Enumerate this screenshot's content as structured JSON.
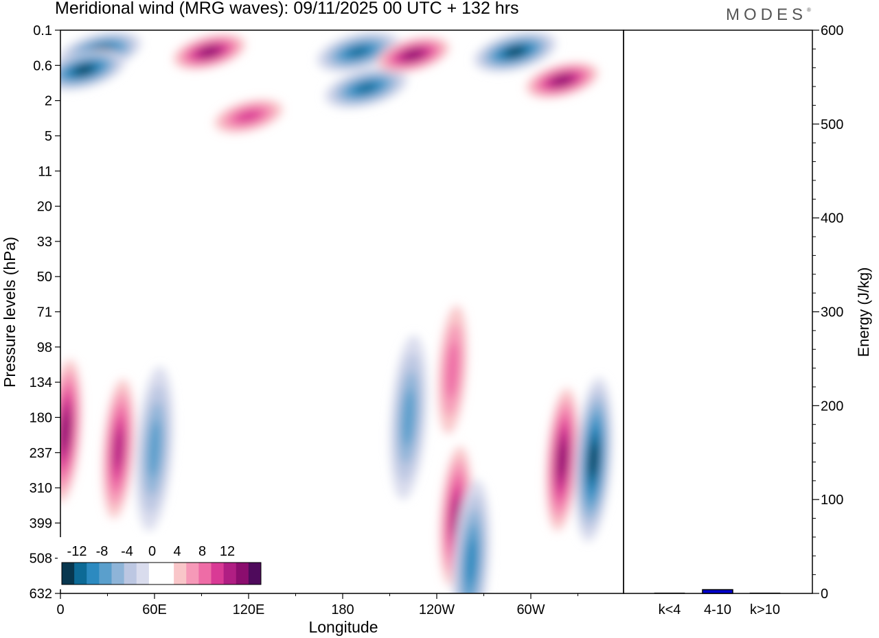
{
  "chart_data": [
    {
      "type": "heatmap",
      "title": "Meridional wind (MRG waves):  09/11/2025  00 UTC  + 132 hrs",
      "xlabel": "Longitude",
      "ylabel": "Pressure levels (hPa)",
      "x_ticks": [
        "0",
        "60E",
        "120E",
        "180",
        "120W",
        "60W"
      ],
      "y_ticks": [
        "0.1",
        "0.6",
        "2",
        "5",
        "11",
        "20",
        "33",
        "50",
        "71",
        "98",
        "134",
        "180",
        "237",
        "310",
        "399",
        "508",
        "632"
      ],
      "colorbar": {
        "labels": [
          "-12",
          "-8",
          "-4",
          "0",
          "4",
          "8",
          "12"
        ],
        "levels": [
          -14,
          -12,
          -10,
          -8,
          -6,
          -4,
          -2,
          2,
          4,
          6,
          8,
          10,
          12,
          14
        ],
        "colors": [
          "#08374f",
          "#0d6a96",
          "#2c8ac0",
          "#5a9fcc",
          "#8eb4d8",
          "#bcc7e2",
          "#d9dced",
          "#ffffff",
          "#ffffff",
          "#f9c6c9",
          "#f699b8",
          "#ee6ca6",
          "#d93a95",
          "#b01e83",
          "#8b0d6e",
          "#4f0a5c"
        ]
      },
      "features": [
        {
          "name": "strat-neg-1",
          "lon": 25,
          "p": 0.3,
          "value": -14
        },
        {
          "name": "strat-neg-2",
          "lon": 15,
          "p": 0.7,
          "value": -14
        },
        {
          "name": "strat-pos-1",
          "lon": 95,
          "p": 0.3,
          "value": 14
        },
        {
          "name": "strat-pos-2",
          "lon": 120,
          "p": 3,
          "value": 10
        },
        {
          "name": "strat-neg-3",
          "lon": 190,
          "p": 0.3,
          "value": -12
        },
        {
          "name": "strat-neg-4",
          "lon": 195,
          "p": 1.3,
          "value": -12
        },
        {
          "name": "strat-pos-3",
          "lon": 225,
          "p": 0.35,
          "value": 14
        },
        {
          "name": "strat-neg-5",
          "lon": 290,
          "p": 0.3,
          "value": -14
        },
        {
          "name": "strat-pos-4",
          "lon": 320,
          "p": 1.0,
          "value": 14
        },
        {
          "name": "trop-pos-1",
          "lon": 3,
          "p": 200,
          "value": 14
        },
        {
          "name": "trop-pos-2",
          "lon": 37,
          "p": 230,
          "value": 12
        },
        {
          "name": "trop-neg-1",
          "lon": 60,
          "p": 230,
          "value": -8
        },
        {
          "name": "trop-neg-2",
          "lon": 222,
          "p": 180,
          "value": -8
        },
        {
          "name": "trop-pos-3",
          "lon": 250,
          "p": 120,
          "value": 8
        },
        {
          "name": "trop-pos-4",
          "lon": 252,
          "p": 380,
          "value": 12
        },
        {
          "name": "trop-neg-3",
          "lon": 262,
          "p": 520,
          "value": -10
        },
        {
          "name": "trop-pos-5",
          "lon": 320,
          "p": 250,
          "value": 14
        },
        {
          "name": "trop-neg-4",
          "lon": 340,
          "p": 250,
          "value": -14
        }
      ]
    },
    {
      "type": "bar",
      "ylabel": "Energy (J/kg)",
      "categories": [
        "k<4",
        "4-10",
        "k>10"
      ],
      "values": [
        0.5,
        4,
        0.5
      ],
      "ylim": [
        0,
        600
      ],
      "y_ticks": [
        "0",
        "100",
        "200",
        "300",
        "400",
        "500",
        "600"
      ],
      "bar_color": "#0000cc"
    }
  ],
  "brand": "MODES"
}
